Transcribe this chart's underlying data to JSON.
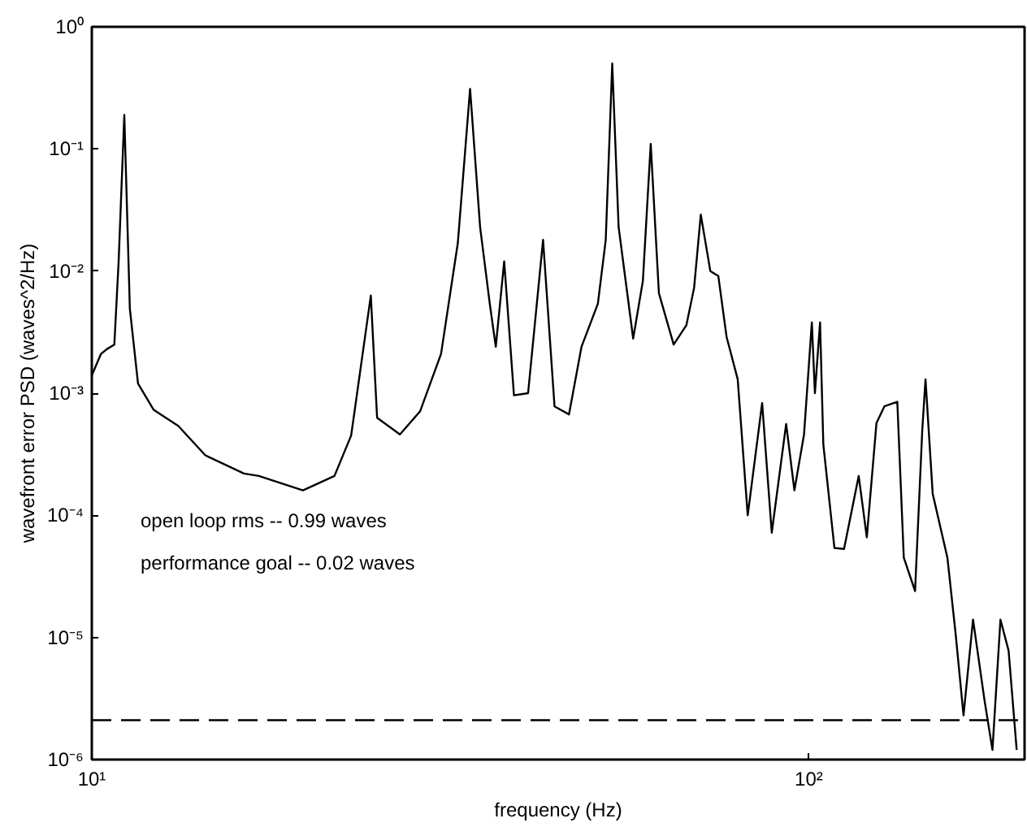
{
  "chart_data": {
    "type": "line",
    "xlabel": "frequency (Hz)",
    "ylabel": "wavefront error PSD (waves^2/Hz)",
    "log": "xy",
    "xlim": [
      10,
      200
    ],
    "ylim": [
      1e-06,
      1
    ],
    "xticks": [
      {
        "value": 10,
        "label": "10¹"
      },
      {
        "value": 100,
        "label": "10²"
      }
    ],
    "yticks": [
      {
        "value": 1e-06,
        "label": "10⁻⁶"
      },
      {
        "value": 1e-05,
        "label": "10⁻⁵"
      },
      {
        "value": 0.0001,
        "label": "10⁻⁴"
      },
      {
        "value": 0.001,
        "label": "10⁻³"
      },
      {
        "value": 0.01,
        "label": "10⁻²"
      },
      {
        "value": 0.1,
        "label": "10⁻¹"
      },
      {
        "value": 1,
        "label": "10⁰"
      }
    ],
    "grid": false,
    "marker": "none",
    "line_style": "solid",
    "x": [
      10.0,
      10.3,
      10.5,
      10.75,
      10.9,
      11.1,
      11.3,
      11.6,
      12.2,
      13.2,
      14.4,
      16.3,
      17.1,
      19.7,
      21.8,
      23.0,
      24.5,
      25.0,
      26.9,
      28.7,
      30.7,
      32.4,
      33.7,
      34.8,
      35.9,
      36.6,
      37.6,
      38.8,
      40.6,
      42.6,
      44.2,
      46.3,
      48.2,
      50.8,
      52.1,
      53.2,
      54.3,
      56.9,
      58.7,
      60.2,
      61.8,
      64.8,
      67.5,
      69.2,
      70.7,
      72.9,
      74.8,
      76.8,
      79.6,
      82.2,
      86.1,
      88.8,
      93.0,
      95.5,
      98.5,
      101.0,
      102.0,
      103.7,
      104.8,
      108.6,
      112.0,
      117.4,
      120.5,
      124.3,
      127.5,
      132.9,
      135.7,
      140.7,
      144.0,
      145.5,
      148.9,
      156.1,
      160.2,
      164.4,
      169.5,
      175.8,
      180.4,
      185.1,
      190.0,
      195.0
    ],
    "series": [
      {
        "color": "#000000",
        "values": [
          0.0014,
          0.0021,
          0.0023,
          0.0025,
          0.012,
          0.19,
          0.0049,
          0.0012,
          0.00073,
          0.00054,
          0.00031,
          0.00022,
          0.00021,
          0.00016,
          0.00021,
          0.00045,
          0.0063,
          0.00063,
          0.00046,
          0.00071,
          0.0021,
          0.017,
          0.31,
          0.023,
          0.0054,
          0.0024,
          0.012,
          0.00096,
          0.001,
          0.018,
          0.00078,
          0.00067,
          0.0024,
          0.0054,
          0.018,
          0.5,
          0.023,
          0.0028,
          0.0083,
          0.11,
          0.0066,
          0.0025,
          0.0036,
          0.0073,
          0.029,
          0.01,
          0.0091,
          0.0029,
          0.0013,
          0.0001,
          0.00083,
          7.2e-05,
          0.00056,
          0.00016,
          0.00046,
          0.0038,
          0.001,
          0.0038,
          0.00038,
          5.4e-05,
          5.3e-05,
          0.00021,
          6.6e-05,
          0.00057,
          0.00078,
          0.00085,
          4.5e-05,
          2.4e-05,
          0.0005,
          0.0013,
          0.00015,
          4.5e-05,
          1.1e-05,
          2.3e-06,
          1.4e-05,
          3.1e-06,
          1.2e-06,
          1.4e-05,
          7.8e-06,
          1.2e-06
        ]
      }
    ],
    "ref_lines": [
      {
        "axis": "y",
        "value": 2.1e-06,
        "color": "#000000",
        "line_style": "dashed"
      }
    ],
    "annotations": [
      "open loop rms -- 0.99 waves",
      "performance goal -- 0.02 waves"
    ]
  }
}
